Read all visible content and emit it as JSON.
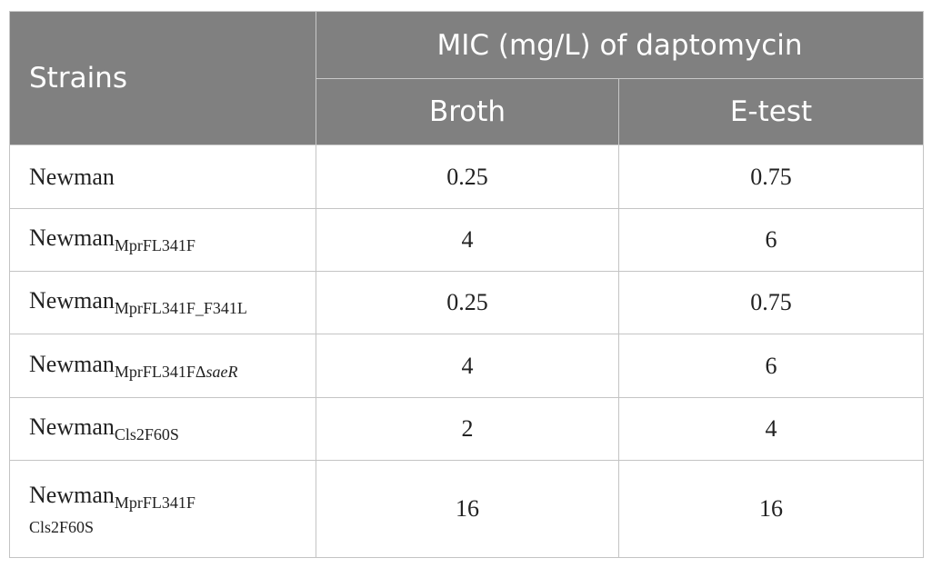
{
  "table": {
    "header": {
      "strains": "Strains",
      "mic": "MIC (mg/L) of daptomycin",
      "broth": "Broth",
      "etest": "E-test"
    },
    "rows": [
      {
        "strain": {
          "name": "Newman"
        },
        "broth": "0.25",
        "etest": "0.75"
      },
      {
        "strain": {
          "name": "Newman",
          "sub": "MprFL341F"
        },
        "broth": "4",
        "etest": "6"
      },
      {
        "strain": {
          "name": "Newman",
          "sub": "MprFL341F_F341L"
        },
        "broth": "0.25",
        "etest": "0.75"
      },
      {
        "strain": {
          "name": "Newman",
          "sub": "MprFL341FΔ",
          "sub_italic": "saeR"
        },
        "broth": "4",
        "etest": "6"
      },
      {
        "strain": {
          "name": "Newman",
          "sub": "Cls2F60S"
        },
        "broth": "2",
        "etest": "4"
      },
      {
        "strain": {
          "name": "Newman",
          "sub": "MprFL341F",
          "sub_line2": "Cls2F60S"
        },
        "broth": "16",
        "etest": "16"
      }
    ]
  }
}
